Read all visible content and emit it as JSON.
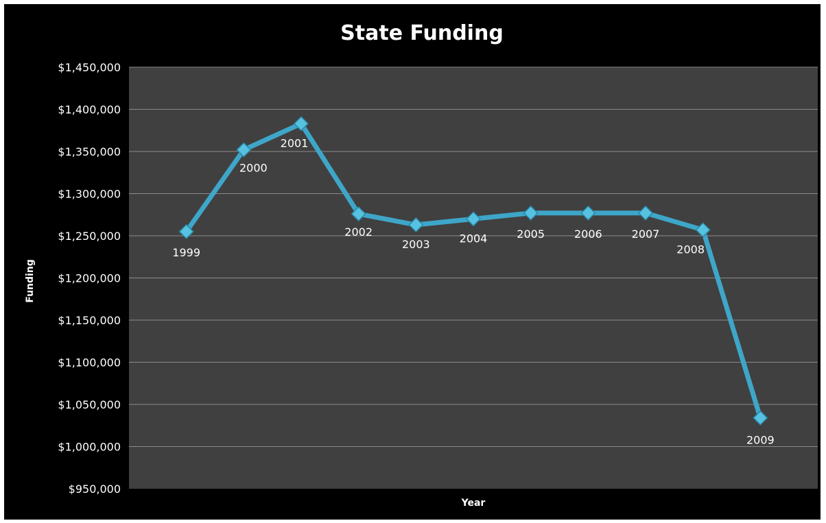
{
  "chart_data": {
    "type": "line",
    "title": "State Funding",
    "xlabel": "Year",
    "ylabel": "Funding",
    "categories": [
      "1999",
      "2000",
      "2001",
      "2002",
      "2003",
      "2004",
      "2005",
      "2006",
      "2007",
      "2008",
      "2009"
    ],
    "series": [
      {
        "values": [
          1255000,
          1352000,
          1383000,
          1276000,
          1263000,
          1270000,
          1277000,
          1277000,
          1277000,
          1257000,
          1034000
        ]
      }
    ],
    "point_labels": [
      "1999",
      "2000",
      "2001",
      "2002",
      "2003",
      "2004",
      "2005",
      "2006",
      "2007",
      "2008",
      "2009"
    ],
    "ylim": [
      950000,
      1450000
    ],
    "y_ticks": [
      "$950,000",
      "$1,000,000",
      "$1,050,000",
      "$1,100,000",
      "$1,150,000",
      "$1,200,000",
      "$1,250,000",
      "$1,300,000",
      "$1,350,000",
      "$1,400,000",
      "$1,450,000"
    ],
    "grid": true,
    "legend": "none",
    "colors": {
      "background": "#000000",
      "plot_area": "#404040",
      "line": "#3ea6c8",
      "marker": "#56c2df",
      "gridline": "#8c8c8c",
      "text": "#ffffff"
    }
  }
}
